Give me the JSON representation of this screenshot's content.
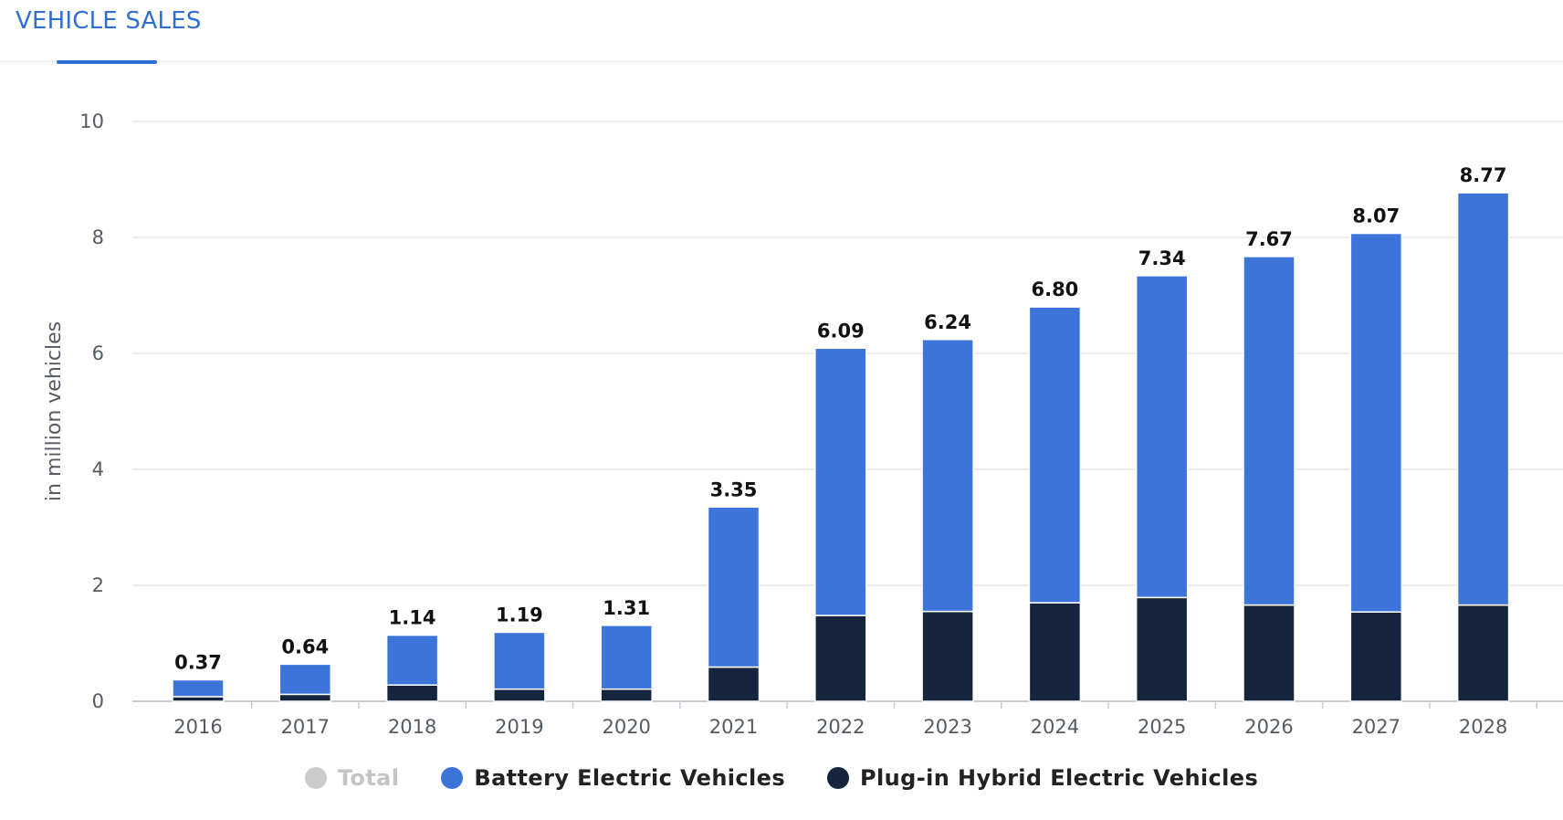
{
  "tab": {
    "label": "VEHICLE SALES",
    "color": "#2f6fd4"
  },
  "chart_data": {
    "type": "bar",
    "stacked": true,
    "categories": [
      "2016",
      "2017",
      "2018",
      "2019",
      "2020",
      "2021",
      "2022",
      "2023",
      "2024",
      "2025",
      "2026",
      "2027",
      "2028"
    ],
    "series": [
      {
        "name": "Plug-in Hybrid Electric Vehicles",
        "color": "#14253d",
        "values": [
          0.08,
          0.12,
          0.28,
          0.21,
          0.21,
          0.59,
          1.48,
          1.55,
          1.7,
          1.79,
          1.66,
          1.54,
          1.66
        ]
      },
      {
        "name": "Battery Electric Vehicles",
        "color": "#3d74d9",
        "values": [
          0.29,
          0.52,
          0.86,
          0.98,
          1.1,
          2.76,
          4.61,
          4.69,
          5.1,
          5.55,
          6.01,
          6.53,
          7.11
        ]
      }
    ],
    "totals": [
      "0.37",
      "0.64",
      "1.14",
      "1.19",
      "1.31",
      "3.35",
      "6.09",
      "6.24",
      "6.80",
      "7.34",
      "7.67",
      "8.07",
      "8.77"
    ],
    "ylabel": "in million vehicles",
    "ylim": [
      0,
      10
    ],
    "yticks": [
      0,
      2,
      4,
      6,
      8,
      10
    ],
    "grid": true,
    "legend": {
      "position": "bottom",
      "items": [
        {
          "label": "Total",
          "color": "#cccccc",
          "muted": true
        },
        {
          "label": "Battery Electric Vehicles",
          "color": "#3d74d9",
          "muted": false
        },
        {
          "label": "Plug-in Hybrid Electric Vehicles",
          "color": "#14253d",
          "muted": false
        }
      ]
    }
  }
}
